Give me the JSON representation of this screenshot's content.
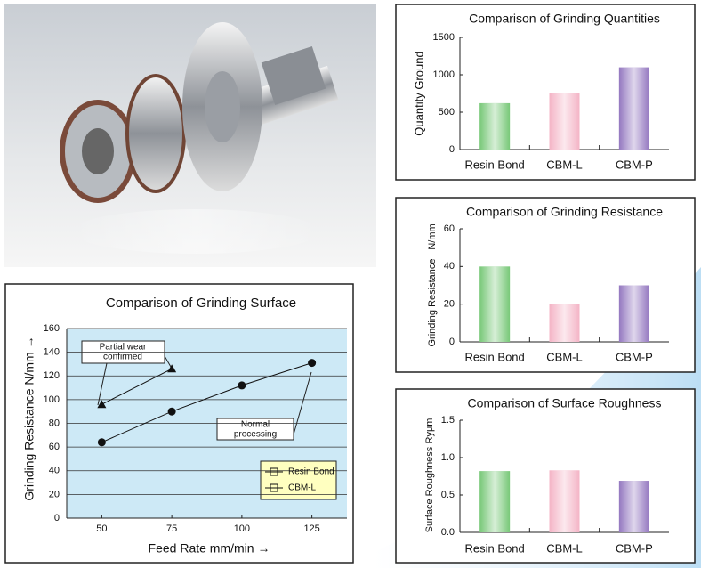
{
  "chart_data": [
    {
      "type": "bar",
      "title": "Comparison of Grinding Quantities",
      "y_label": "Quantity Ground",
      "categories": [
        "Resin Bond",
        "CBM-L",
        "CBM-P"
      ],
      "values": [
        620,
        760,
        1100
      ],
      "colors": [
        "#78c878",
        "#f4b4c6",
        "#9478c0"
      ],
      "ylim": [
        0,
        1500
      ],
      "yticks": [
        0,
        500,
        1000,
        1500
      ]
    },
    {
      "type": "bar",
      "title": "Comparison of Grinding Resistance",
      "y_label": "Grinding Resistance",
      "y_unit": "N/mm",
      "categories": [
        "Resin Bond",
        "CBM-L",
        "CBM-P"
      ],
      "values": [
        40,
        20,
        30
      ],
      "colors": [
        "#78c878",
        "#f4b4c6",
        "#9478c0"
      ],
      "ylim": [
        0,
        60
      ],
      "yticks": [
        0,
        20,
        40,
        60
      ]
    },
    {
      "type": "bar",
      "title": "Comparison of Surface Roughness",
      "y_label": "Surface Roughness",
      "y_unit": "Ryμm",
      "categories": [
        "Resin Bond",
        "CBM-L",
        "CBM-P"
      ],
      "values": [
        0.82,
        0.83,
        0.69
      ],
      "colors": [
        "#78c878",
        "#f4b4c6",
        "#9478c0"
      ],
      "ylim": [
        0,
        1.5
      ],
      "yticks": [
        {
          "value": 0,
          "label": "0.0"
        },
        0.5,
        {
          "value": 1,
          "label": "1.0"
        },
        1.5
      ]
    },
    {
      "type": "line",
      "title": "Comparison of Grinding Surface",
      "x_label": "Feed Rate   mm/min →",
      "y_label": "Grinding Resistance   N/mm →",
      "x": [
        50,
        75,
        100,
        125
      ],
      "xlim": [
        37.5,
        137.5
      ],
      "xticks": [
        50,
        75,
        100,
        125
      ],
      "ylim": [
        0,
        160
      ],
      "yticks": [
        0,
        20,
        40,
        60,
        80,
        100,
        120,
        140,
        160
      ],
      "grid": true,
      "legend": "lower right",
      "series": [
        {
          "name": "Resin Bond",
          "color": "#111111",
          "marker": "triangle",
          "values": [
            96,
            126,
            null,
            null
          ]
        },
        {
          "name": "CBM-L",
          "color": "#111111",
          "marker": "circle",
          "values": [
            64,
            90,
            112,
            131
          ]
        }
      ],
      "annotations": [
        "Partial wear\nconfirmed",
        "Normal\nprocessing"
      ]
    }
  ]
}
